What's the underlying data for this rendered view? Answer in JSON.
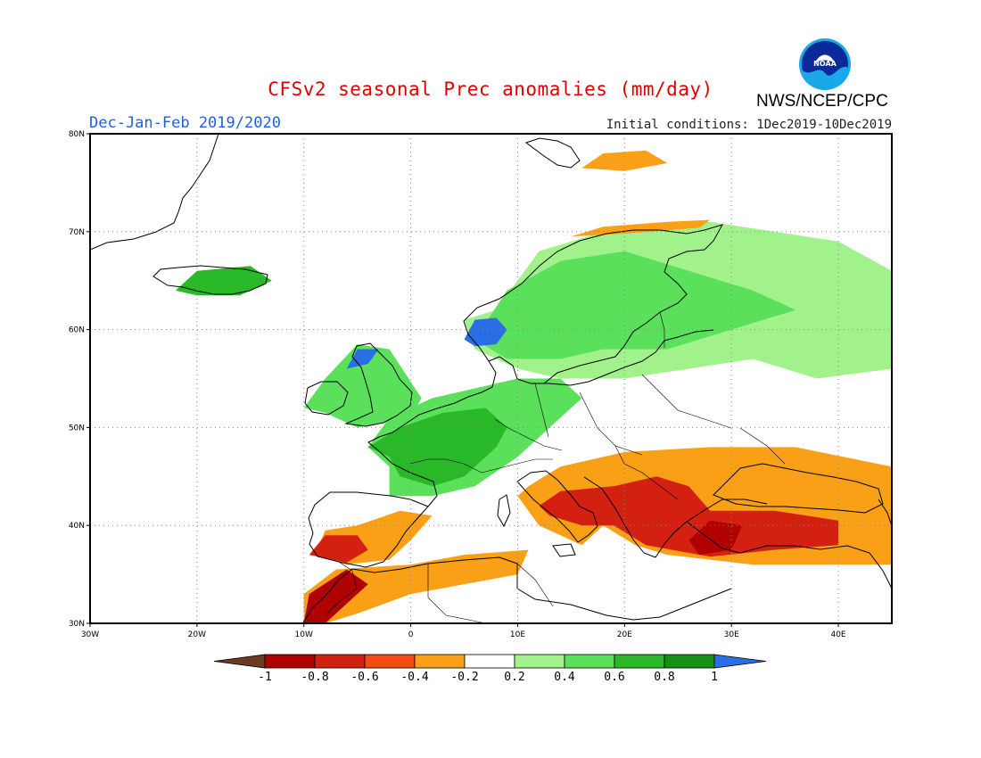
{
  "title": "CFSv2 seasonal Prec anomalies (mm/day)",
  "agency": "NWS/NCEP/CPC",
  "logo_text": "NOAA",
  "season": "Dec-Jan-Feb 2019/2020",
  "initial_conditions": "Initial conditions: 1Dec2019-10Dec2019",
  "map": {
    "lon_range": [
      -30,
      45
    ],
    "lat_range": [
      30,
      80
    ],
    "lon_ticks": [
      {
        "value": -30,
        "label": "30W"
      },
      {
        "value": -20,
        "label": "20W"
      },
      {
        "value": -10,
        "label": "10W"
      },
      {
        "value": 0,
        "label": "0"
      },
      {
        "value": 10,
        "label": "10E"
      },
      {
        "value": 20,
        "label": "20E"
      },
      {
        "value": 30,
        "label": "30E"
      },
      {
        "value": 40,
        "label": "40E"
      }
    ],
    "lat_ticks": [
      {
        "value": 30,
        "label": "30N"
      },
      {
        "value": 40,
        "label": "40N"
      },
      {
        "value": 50,
        "label": "50N"
      },
      {
        "value": 60,
        "label": "60N"
      },
      {
        "value": 70,
        "label": "70N"
      },
      {
        "value": 80,
        "label": "80N"
      }
    ],
    "grid": true
  },
  "colorbar": {
    "labels": [
      "-1",
      "-0.8",
      "-0.6",
      "-0.4",
      "-0.2",
      "0.2",
      "0.4",
      "0.6",
      "0.8",
      "1"
    ],
    "colors": [
      "#6b3a22",
      "#b00000",
      "#d42010",
      "#f54a14",
      "#f9a016",
      "#ffffff",
      "#a2f28c",
      "#5ae05a",
      "#28b828",
      "#149014",
      "#2a6ee6"
    ]
  },
  "anomaly_regions": [
    {
      "name": "Scandinavia / Finland / NW Russia wet",
      "color": "#a2f28c",
      "polygon": [
        [
          8,
          62
        ],
        [
          12,
          68
        ],
        [
          18,
          70
        ],
        [
          28,
          71
        ],
        [
          40,
          69
        ],
        [
          45,
          66
        ],
        [
          45,
          56
        ],
        [
          38,
          55
        ],
        [
          32,
          57
        ],
        [
          26,
          56
        ],
        [
          20,
          55
        ],
        [
          14,
          55
        ],
        [
          10,
          56
        ],
        [
          6,
          58
        ],
        [
          5,
          61
        ]
      ]
    },
    {
      "name": "Norway / Sweden stronger wet",
      "color": "#5ae05a",
      "polygon": [
        [
          6,
          59
        ],
        [
          9,
          64
        ],
        [
          14,
          67
        ],
        [
          20,
          68
        ],
        [
          26,
          66
        ],
        [
          32,
          64
        ],
        [
          36,
          62
        ],
        [
          30,
          60
        ],
        [
          24,
          58
        ],
        [
          18,
          58
        ],
        [
          14,
          57
        ],
        [
          9,
          57
        ]
      ]
    },
    {
      "name": "Southern Norway strong wet",
      "color": "#2a6ee6",
      "polygon": [
        [
          5,
          59
        ],
        [
          6,
          61
        ],
        [
          8,
          61.2
        ],
        [
          9,
          60
        ],
        [
          8,
          58.5
        ],
        [
          6,
          58.3
        ]
      ]
    },
    {
      "name": "Western Europe wet",
      "color": "#5ae05a",
      "polygon": [
        [
          -4,
          48
        ],
        [
          -2,
          51
        ],
        [
          2,
          53
        ],
        [
          6,
          54
        ],
        [
          10,
          55
        ],
        [
          14,
          55
        ],
        [
          16,
          53
        ],
        [
          14,
          51
        ],
        [
          12,
          49
        ],
        [
          10,
          47
        ],
        [
          6,
          44
        ],
        [
          2,
          43
        ],
        [
          -2,
          43
        ],
        [
          -2,
          46
        ]
      ]
    },
    {
      "name": "France / Benelux stronger wet",
      "color": "#28b828",
      "polygon": [
        [
          -4,
          48
        ],
        [
          -1,
          50
        ],
        [
          3,
          51.5
        ],
        [
          7,
          52
        ],
        [
          9,
          50
        ],
        [
          8,
          48
        ],
        [
          5,
          45
        ],
        [
          2,
          44
        ],
        [
          -1,
          45
        ],
        [
          -2,
          47
        ]
      ]
    },
    {
      "name": "British Isles wet",
      "color": "#5ae05a",
      "polygon": [
        [
          -10,
          52
        ],
        [
          -8,
          55
        ],
        [
          -5,
          58.5
        ],
        [
          -2,
          58
        ],
        [
          1,
          53
        ],
        [
          0,
          51
        ],
        [
          -5,
          50
        ],
        [
          -8,
          51.5
        ]
      ]
    },
    {
      "name": "Scotland strong wet",
      "color": "#2a6ee6",
      "polygon": [
        [
          -6,
          56
        ],
        [
          -5,
          58
        ],
        [
          -3,
          58
        ],
        [
          -4,
          56.5
        ]
      ]
    },
    {
      "name": "Iceland wet",
      "color": "#28b828",
      "polygon": [
        [
          -22,
          64
        ],
        [
          -20,
          66
        ],
        [
          -15,
          66.5
        ],
        [
          -13,
          65
        ],
        [
          -16,
          63.5
        ],
        [
          -20,
          63.5
        ]
      ]
    },
    {
      "name": "Svalbard south dry",
      "color": "#f9a016",
      "polygon": [
        [
          16,
          76.5
        ],
        [
          18,
          78
        ],
        [
          22,
          78.3
        ],
        [
          24,
          77
        ],
        [
          20,
          76.2
        ]
      ]
    },
    {
      "name": "Northern Norway coast dry",
      "color": "#f9a016",
      "polygon": [
        [
          15,
          69.5
        ],
        [
          18,
          70.5
        ],
        [
          24,
          71
        ],
        [
          28,
          71.2
        ],
        [
          27,
          70.4
        ],
        [
          20,
          69.8
        ]
      ]
    },
    {
      "name": "Iberia south dry",
      "color": "#f9a016",
      "polygon": [
        [
          -9,
          37
        ],
        [
          -8,
          39.5
        ],
        [
          -5,
          40
        ],
        [
          -1,
          41.5
        ],
        [
          2,
          41
        ],
        [
          0,
          38.5
        ],
        [
          -2,
          36.5
        ],
        [
          -6,
          36
        ]
      ]
    },
    {
      "name": "Iberia SW strong dry",
      "color": "#d42010",
      "polygon": [
        [
          -9.5,
          37
        ],
        [
          -8,
          39
        ],
        [
          -5,
          39
        ],
        [
          -4,
          37.5
        ],
        [
          -6,
          36.2
        ]
      ]
    },
    {
      "name": "North Africa dry",
      "color": "#f9a016",
      "polygon": [
        [
          -10,
          30
        ],
        [
          -10,
          33
        ],
        [
          -7,
          35.5
        ],
        [
          0,
          36
        ],
        [
          5,
          37
        ],
        [
          11,
          37.5
        ],
        [
          10,
          35
        ],
        [
          5,
          34
        ],
        [
          0,
          33
        ],
        [
          -5,
          31
        ],
        [
          -8,
          30
        ]
      ]
    },
    {
      "name": "Morocco strong dry",
      "color": "#b00000",
      "polygon": [
        [
          -10,
          30
        ],
        [
          -9.5,
          33
        ],
        [
          -6,
          35.5
        ],
        [
          -4,
          34
        ],
        [
          -6,
          32
        ],
        [
          -8,
          30
        ]
      ]
    },
    {
      "name": "Balkans / Italy / Turkey dry",
      "color": "#f9a016",
      "polygon": [
        [
          11,
          44
        ],
        [
          14,
          46
        ],
        [
          20,
          47.5
        ],
        [
          28,
          48
        ],
        [
          36,
          48
        ],
        [
          45,
          46
        ],
        [
          45,
          36
        ],
        [
          38,
          36
        ],
        [
          32,
          36
        ],
        [
          28,
          36.5
        ],
        [
          24,
          37
        ],
        [
          21,
          38
        ],
        [
          18,
          40
        ],
        [
          16,
          38
        ],
        [
          12,
          40
        ],
        [
          10,
          43
        ]
      ]
    },
    {
      "name": "Balkans / Italy / Turkey strong dry",
      "color": "#d42010",
      "polygon": [
        [
          12,
          42
        ],
        [
          14,
          43.5
        ],
        [
          19,
          44
        ],
        [
          23,
          45
        ],
        [
          26,
          44
        ],
        [
          28,
          41.5
        ],
        [
          34,
          41.5
        ],
        [
          40,
          40.5
        ],
        [
          40,
          38
        ],
        [
          34,
          37.5
        ],
        [
          28,
          36.8
        ],
        [
          22,
          38
        ],
        [
          19,
          40
        ],
        [
          16,
          40
        ],
        [
          13,
          41
        ]
      ]
    },
    {
      "name": "Aegean strongest dry",
      "color": "#b00000",
      "polygon": [
        [
          26,
          38.5
        ],
        [
          28,
          40.5
        ],
        [
          31,
          40
        ],
        [
          30,
          37.5
        ],
        [
          27,
          37
        ]
      ]
    }
  ]
}
